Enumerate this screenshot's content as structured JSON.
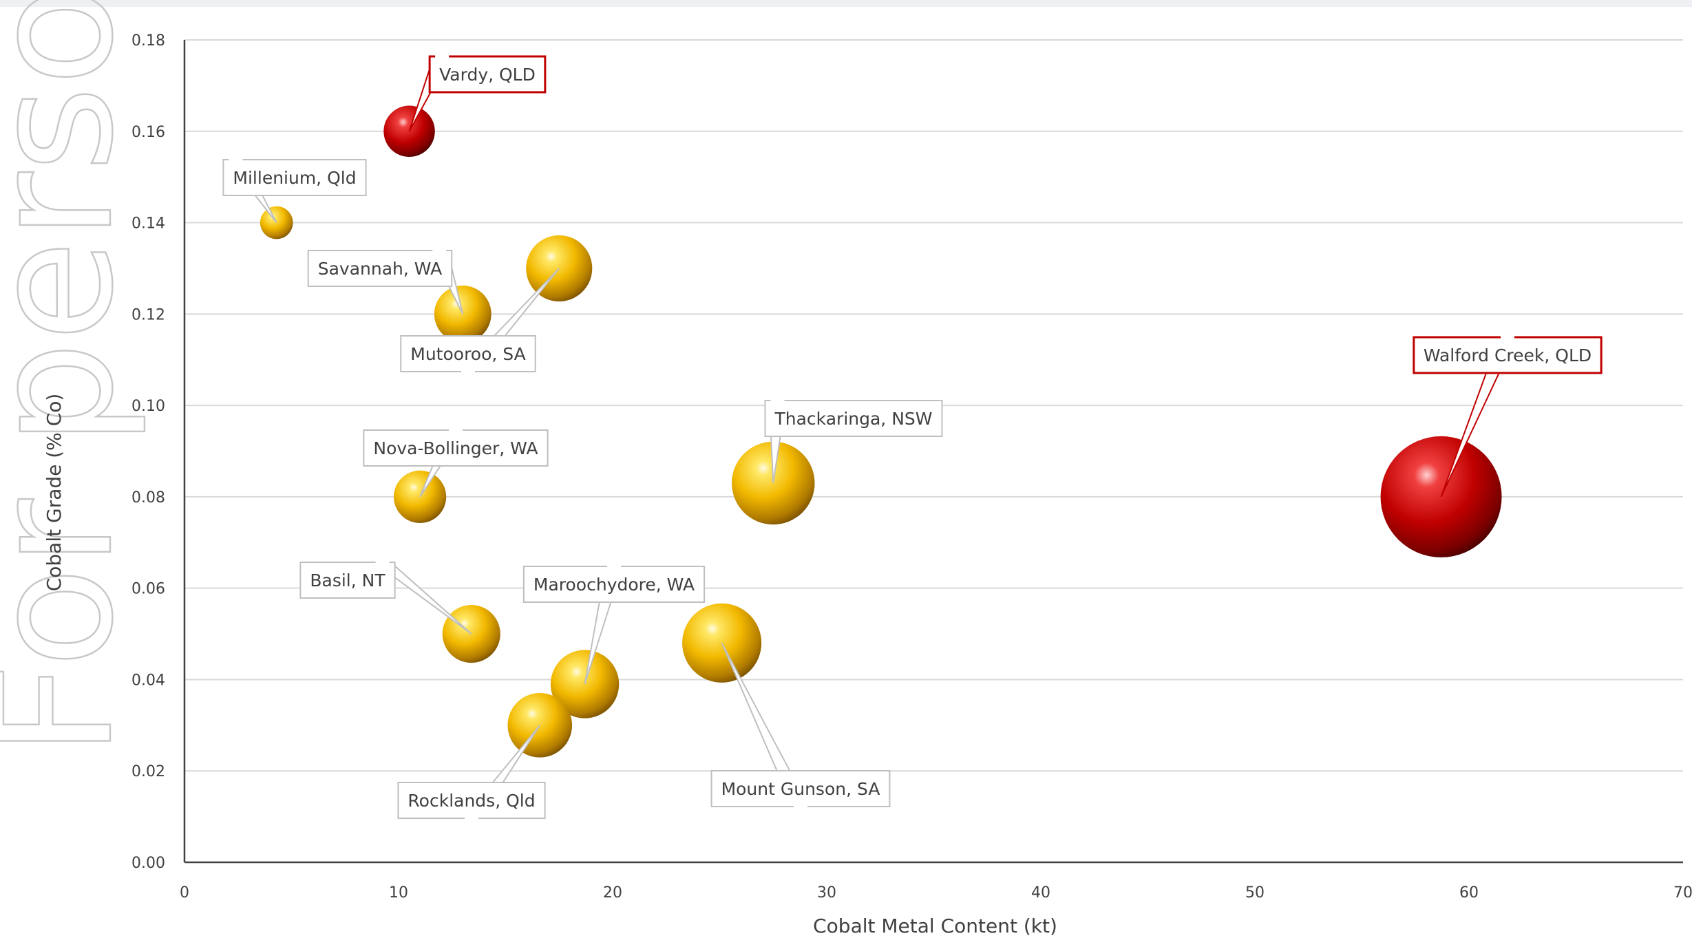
{
  "watermark": "For personal",
  "colors": {
    "gold": "#f0b800",
    "red": "#c00000",
    "grid": "#d9d9d9",
    "axis": "#404040"
  },
  "chart_data": {
    "type": "bubble",
    "xlabel": "Cobalt Metal Content (kt)",
    "ylabel": "Cobalt Grade (% Co)",
    "xlim": [
      0,
      70
    ],
    "ylim": [
      0,
      0.18
    ],
    "x_ticks": [
      "0",
      "10",
      "20",
      "30",
      "40",
      "50",
      "60",
      "70"
    ],
    "y_ticks": [
      "0.00",
      "0.02",
      "0.04",
      "0.06",
      "0.08",
      "0.10",
      "0.12",
      "0.14",
      "0.16",
      "0.18"
    ],
    "grid": true,
    "points": [
      {
        "label": "Vardy, QLD",
        "x": 10.5,
        "y": 0.16,
        "size": 10.5,
        "color": "red"
      },
      {
        "label": "Millenium, Qld",
        "x": 4.3,
        "y": 0.14,
        "size": 4.3,
        "color": "gold"
      },
      {
        "label": "Savannah, WA",
        "x": 13.0,
        "y": 0.12,
        "size": 13.0,
        "color": "gold"
      },
      {
        "label": "Mutooroo, SA",
        "x": 17.5,
        "y": 0.13,
        "size": 17.5,
        "color": "gold"
      },
      {
        "label": "Nova-Bollinger, WA",
        "x": 11.0,
        "y": 0.08,
        "size": 11.0,
        "color": "gold"
      },
      {
        "label": "Thackaringa, NSW",
        "x": 27.5,
        "y": 0.083,
        "size": 27.5,
        "color": "gold"
      },
      {
        "label": "Walford Creek, QLD",
        "x": 58.7,
        "y": 0.08,
        "size": 58.7,
        "color": "red"
      },
      {
        "label": "Basil, NT",
        "x": 13.4,
        "y": 0.05,
        "size": 13.4,
        "color": "gold"
      },
      {
        "label": "Maroochydore, WA",
        "x": 18.7,
        "y": 0.039,
        "size": 18.7,
        "color": "gold"
      },
      {
        "label": "Mount Gunson, SA",
        "x": 25.1,
        "y": 0.048,
        "size": 25.1,
        "color": "gold"
      },
      {
        "label": "Rocklands, Qld",
        "x": 16.6,
        "y": 0.03,
        "size": 16.6,
        "color": "gold"
      }
    ]
  }
}
